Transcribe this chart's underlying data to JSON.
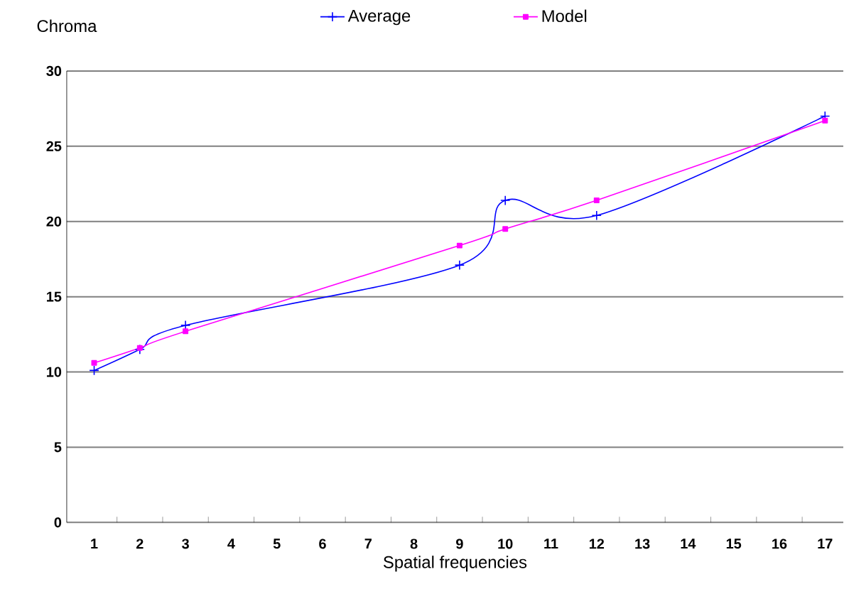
{
  "chart_data": {
    "type": "line",
    "xlabel": "Spatial frequencies",
    "ylabel": "Chroma",
    "categories": [
      "1",
      "2",
      "3",
      "4",
      "5",
      "6",
      "7",
      "8",
      "9",
      "10",
      "11",
      "12",
      "13",
      "14",
      "15",
      "16",
      "17"
    ],
    "series": [
      {
        "name": "Average",
        "color": "#0000ff",
        "marker": "cross",
        "values": [
          10.1,
          11.5,
          13.1,
          null,
          null,
          null,
          null,
          null,
          17.1,
          21.4,
          null,
          20.4,
          null,
          null,
          null,
          null,
          27.0
        ]
      },
      {
        "name": "Model",
        "color": "#ff00ff",
        "marker": "square",
        "values": [
          10.6,
          11.6,
          12.7,
          null,
          null,
          null,
          null,
          null,
          18.4,
          19.5,
          null,
          21.4,
          null,
          null,
          null,
          null,
          26.7
        ]
      }
    ],
    "ylim": [
      0,
      30
    ],
    "yticks": [
      0,
      5,
      10,
      15,
      20,
      25,
      30
    ],
    "grid": "y",
    "legend": "top"
  }
}
